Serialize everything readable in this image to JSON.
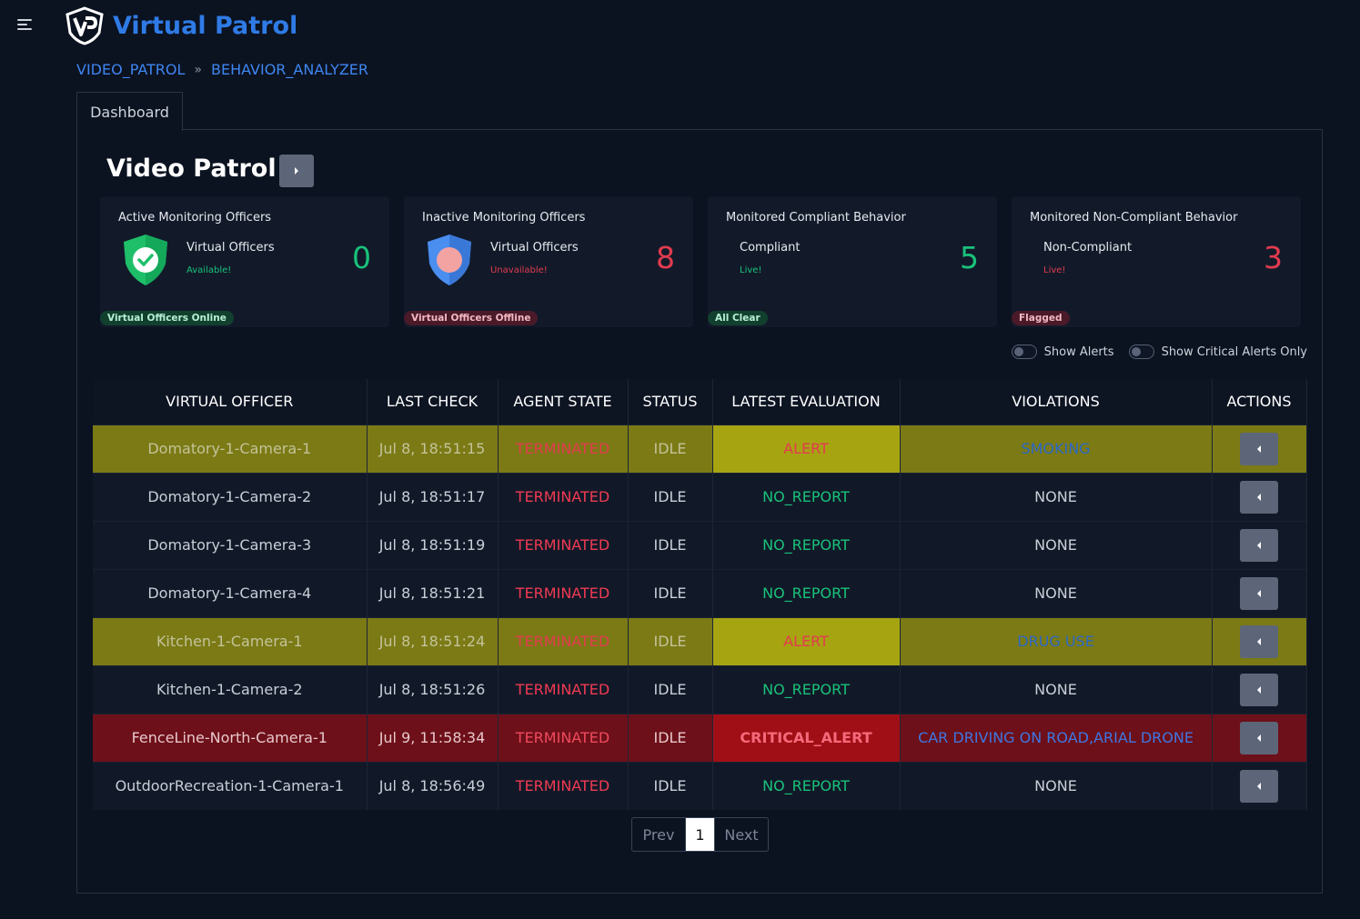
{
  "app": {
    "title": "Virtual Patrol"
  },
  "breadcrumb": {
    "items": [
      "VIDEO_PATROL",
      "BEHAVIOR_ANALYZER"
    ],
    "separator": "»"
  },
  "tabs": [
    {
      "label": "Dashboard"
    }
  ],
  "page": {
    "title": "Video Patrol"
  },
  "cards": [
    {
      "title": "Active Monitoring Officers",
      "label": "Virtual Officers",
      "sub": "Available!",
      "value": "0",
      "badge": "Virtual Officers Online",
      "icon": "green-shield-check-icon"
    },
    {
      "title": "Inactive Monitoring Officers",
      "label": "Virtual Officers",
      "sub": "Unavailable!",
      "value": "8",
      "badge": "Virtual Officers Offline",
      "icon": "blue-shield-icon"
    },
    {
      "title": "Monitored Compliant Behavior",
      "label": "Compliant",
      "sub": "Live!",
      "value": "5",
      "badge": "All Clear"
    },
    {
      "title": "Monitored Non-Compliant Behavior",
      "label": "Non-Compliant",
      "sub": "Live!",
      "value": "3",
      "badge": "Flagged"
    }
  ],
  "toggles": {
    "show_alerts": "Show Alerts",
    "show_critical": "Show Critical Alerts Only"
  },
  "table": {
    "headers": [
      "VIRTUAL OFFICER",
      "LAST CHECK",
      "AGENT STATE",
      "STATUS",
      "LATEST EVALUATION",
      "VIOLATIONS",
      "ACTIONS"
    ],
    "rows": [
      {
        "officer": "Domatory-1-Camera-1",
        "last_check": "Jul 8, 18:51:15",
        "agent_state": "TERMINATED",
        "status": "IDLE",
        "evaluation": "ALERT",
        "violations": "SMOKING"
      },
      {
        "officer": "Domatory-1-Camera-2",
        "last_check": "Jul 8, 18:51:17",
        "agent_state": "TERMINATED",
        "status": "IDLE",
        "evaluation": "NO_REPORT",
        "violations": "NONE"
      },
      {
        "officer": "Domatory-1-Camera-3",
        "last_check": "Jul 8, 18:51:19",
        "agent_state": "TERMINATED",
        "status": "IDLE",
        "evaluation": "NO_REPORT",
        "violations": "NONE"
      },
      {
        "officer": "Domatory-1-Camera-4",
        "last_check": "Jul 8, 18:51:21",
        "agent_state": "TERMINATED",
        "status": "IDLE",
        "evaluation": "NO_REPORT",
        "violations": "NONE"
      },
      {
        "officer": "Kitchen-1-Camera-1",
        "last_check": "Jul 8, 18:51:24",
        "agent_state": "TERMINATED",
        "status": "IDLE",
        "evaluation": "ALERT",
        "violations": "DRUG USE"
      },
      {
        "officer": "Kitchen-1-Camera-2",
        "last_check": "Jul 8, 18:51:26",
        "agent_state": "TERMINATED",
        "status": "IDLE",
        "evaluation": "NO_REPORT",
        "violations": "NONE"
      },
      {
        "officer": "FenceLine-North-Camera-1",
        "last_check": "Jul 9, 11:58:34",
        "agent_state": "TERMINATED",
        "status": "IDLE",
        "evaluation": "CRITICAL_ALERT",
        "violations": "CAR DRIVING ON ROAD,ARIAL DRONE"
      },
      {
        "officer": "OutdoorRecreation-1-Camera-1",
        "last_check": "Jul 8, 18:56:49",
        "agent_state": "TERMINATED",
        "status": "IDLE",
        "evaluation": "NO_REPORT",
        "violations": "NONE"
      }
    ]
  },
  "pagination": {
    "prev": "Prev",
    "current": "1",
    "next": "Next"
  },
  "colors": {
    "brand": "#2f7be6",
    "green": "#19c27a",
    "red": "#e23b4e",
    "alert_row": "#7b7a15",
    "critical_row": "#6d1019"
  }
}
